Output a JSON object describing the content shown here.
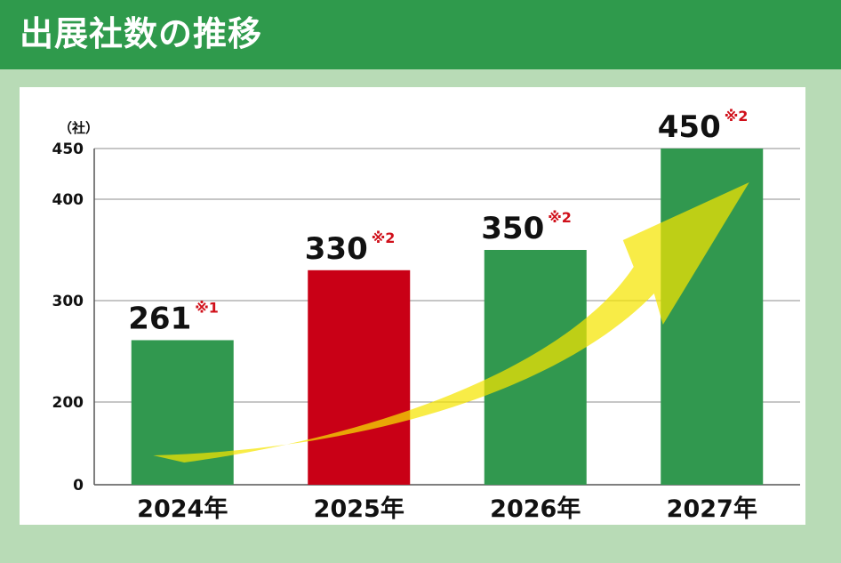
{
  "header": {
    "title": "出展社数の推移"
  },
  "colors": {
    "header_bg": "#2f9a4c",
    "page_bg": "#b8dbb6",
    "bar_green": "#31984f",
    "bar_red": "#c90016",
    "note_red": "#d0101a",
    "arrow_yellow": "#f5e400"
  },
  "chart_data": {
    "type": "bar",
    "title": "出展社数の推移",
    "unit_label": "（社）",
    "categories": [
      "2024年",
      "2025年",
      "2026年",
      "2027年"
    ],
    "values": [
      261,
      330,
      350,
      450
    ],
    "value_labels": [
      "261",
      "330",
      "350",
      "450"
    ],
    "notes": [
      "※1",
      "※2",
      "※2",
      "※2"
    ],
    "bar_colors": [
      "#31984f",
      "#c90016",
      "#31984f",
      "#31984f"
    ],
    "y_ticks": [
      "0",
      "200",
      "300",
      "400",
      "450"
    ],
    "ylim": [
      0,
      450
    ],
    "grid": true,
    "trend_arrow": true
  }
}
